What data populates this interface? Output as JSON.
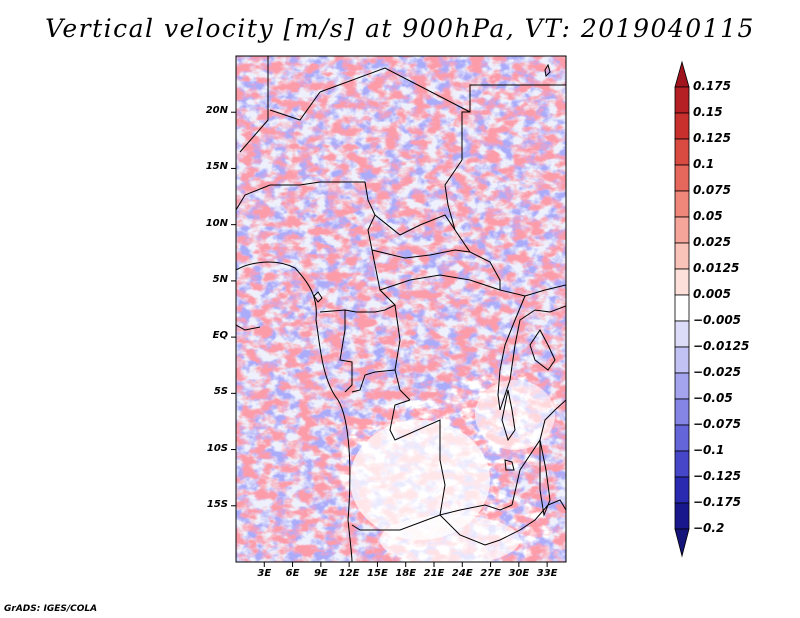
{
  "title": "Vertical velocity [m/s] at 900hPa, VT: 2019040115",
  "credit": "GrADS: IGES/COLA",
  "map": {
    "variable": "Vertical velocity",
    "units": "m/s",
    "level": "900hPa",
    "valid_time": "2019040115",
    "region": "Central Africa",
    "lat_range": [
      -20,
      25
    ],
    "lon_range": [
      0,
      35
    ],
    "lat_ticks": [
      {
        "value": 20,
        "label": "20N"
      },
      {
        "value": 15,
        "label": "15N"
      },
      {
        "value": 10,
        "label": "10N"
      },
      {
        "value": 5,
        "label": "5N"
      },
      {
        "value": 0,
        "label": "EQ"
      },
      {
        "value": -5,
        "label": "5S"
      },
      {
        "value": -10,
        "label": "10S"
      },
      {
        "value": -15,
        "label": "15S"
      }
    ],
    "lon_ticks": [
      {
        "value": 3,
        "label": "3E"
      },
      {
        "value": 6,
        "label": "6E"
      },
      {
        "value": 9,
        "label": "9E"
      },
      {
        "value": 12,
        "label": "12E"
      },
      {
        "value": 15,
        "label": "15E"
      },
      {
        "value": 18,
        "label": "18E"
      },
      {
        "value": 21,
        "label": "21E"
      },
      {
        "value": 24,
        "label": "24E"
      },
      {
        "value": 27,
        "label": "27E"
      },
      {
        "value": 30,
        "label": "30E"
      },
      {
        "value": 33,
        "label": "33E"
      }
    ]
  },
  "colorbar": {
    "levels": [
      "0.175",
      "0.15",
      "0.125",
      "0.1",
      "0.075",
      "0.05",
      "0.025",
      "0.0125",
      "0.005",
      "-0.005",
      "-0.0125",
      "-0.025",
      "-0.05",
      "-0.075",
      "-0.1",
      "-0.125",
      "-0.175",
      "-0.2"
    ],
    "colors": [
      "#a0141e",
      "#b42024",
      "#c8302d",
      "#d94a41",
      "#e6675b",
      "#ef877a",
      "#f5a59a",
      "#fac3ba",
      "#fde0da",
      "#ffffff",
      "#dcdcf8",
      "#c2c2f4",
      "#a3a3ee",
      "#8585e6",
      "#6565da",
      "#4646c8",
      "#2a2ab0",
      "#18188c",
      "#14147a"
    ]
  }
}
